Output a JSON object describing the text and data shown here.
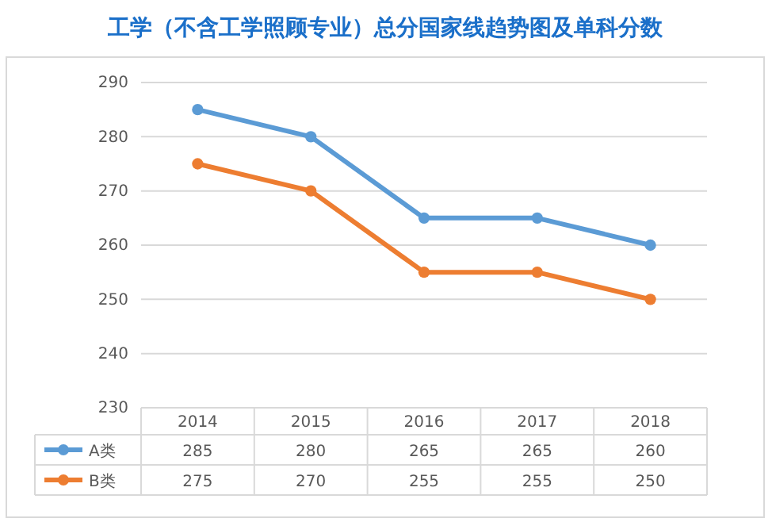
{
  "chart_data": {
    "type": "line",
    "title": "工学（不含工学照顾专业）总分国家线趋势图及单科分数",
    "categories": [
      "2014",
      "2015",
      "2016",
      "2017",
      "2018"
    ],
    "series": [
      {
        "name": "A类",
        "color": "#5b9bd5",
        "values": [
          285,
          280,
          265,
          265,
          260
        ]
      },
      {
        "name": "B类",
        "color": "#ed7d31",
        "values": [
          275,
          270,
          255,
          255,
          250
        ]
      }
    ],
    "ylim": [
      230,
      290
    ],
    "yticks": [
      230,
      240,
      250,
      260,
      270,
      280,
      290
    ],
    "grid": "y",
    "marker": "circle",
    "legend": "bottom",
    "data_labels": true
  }
}
